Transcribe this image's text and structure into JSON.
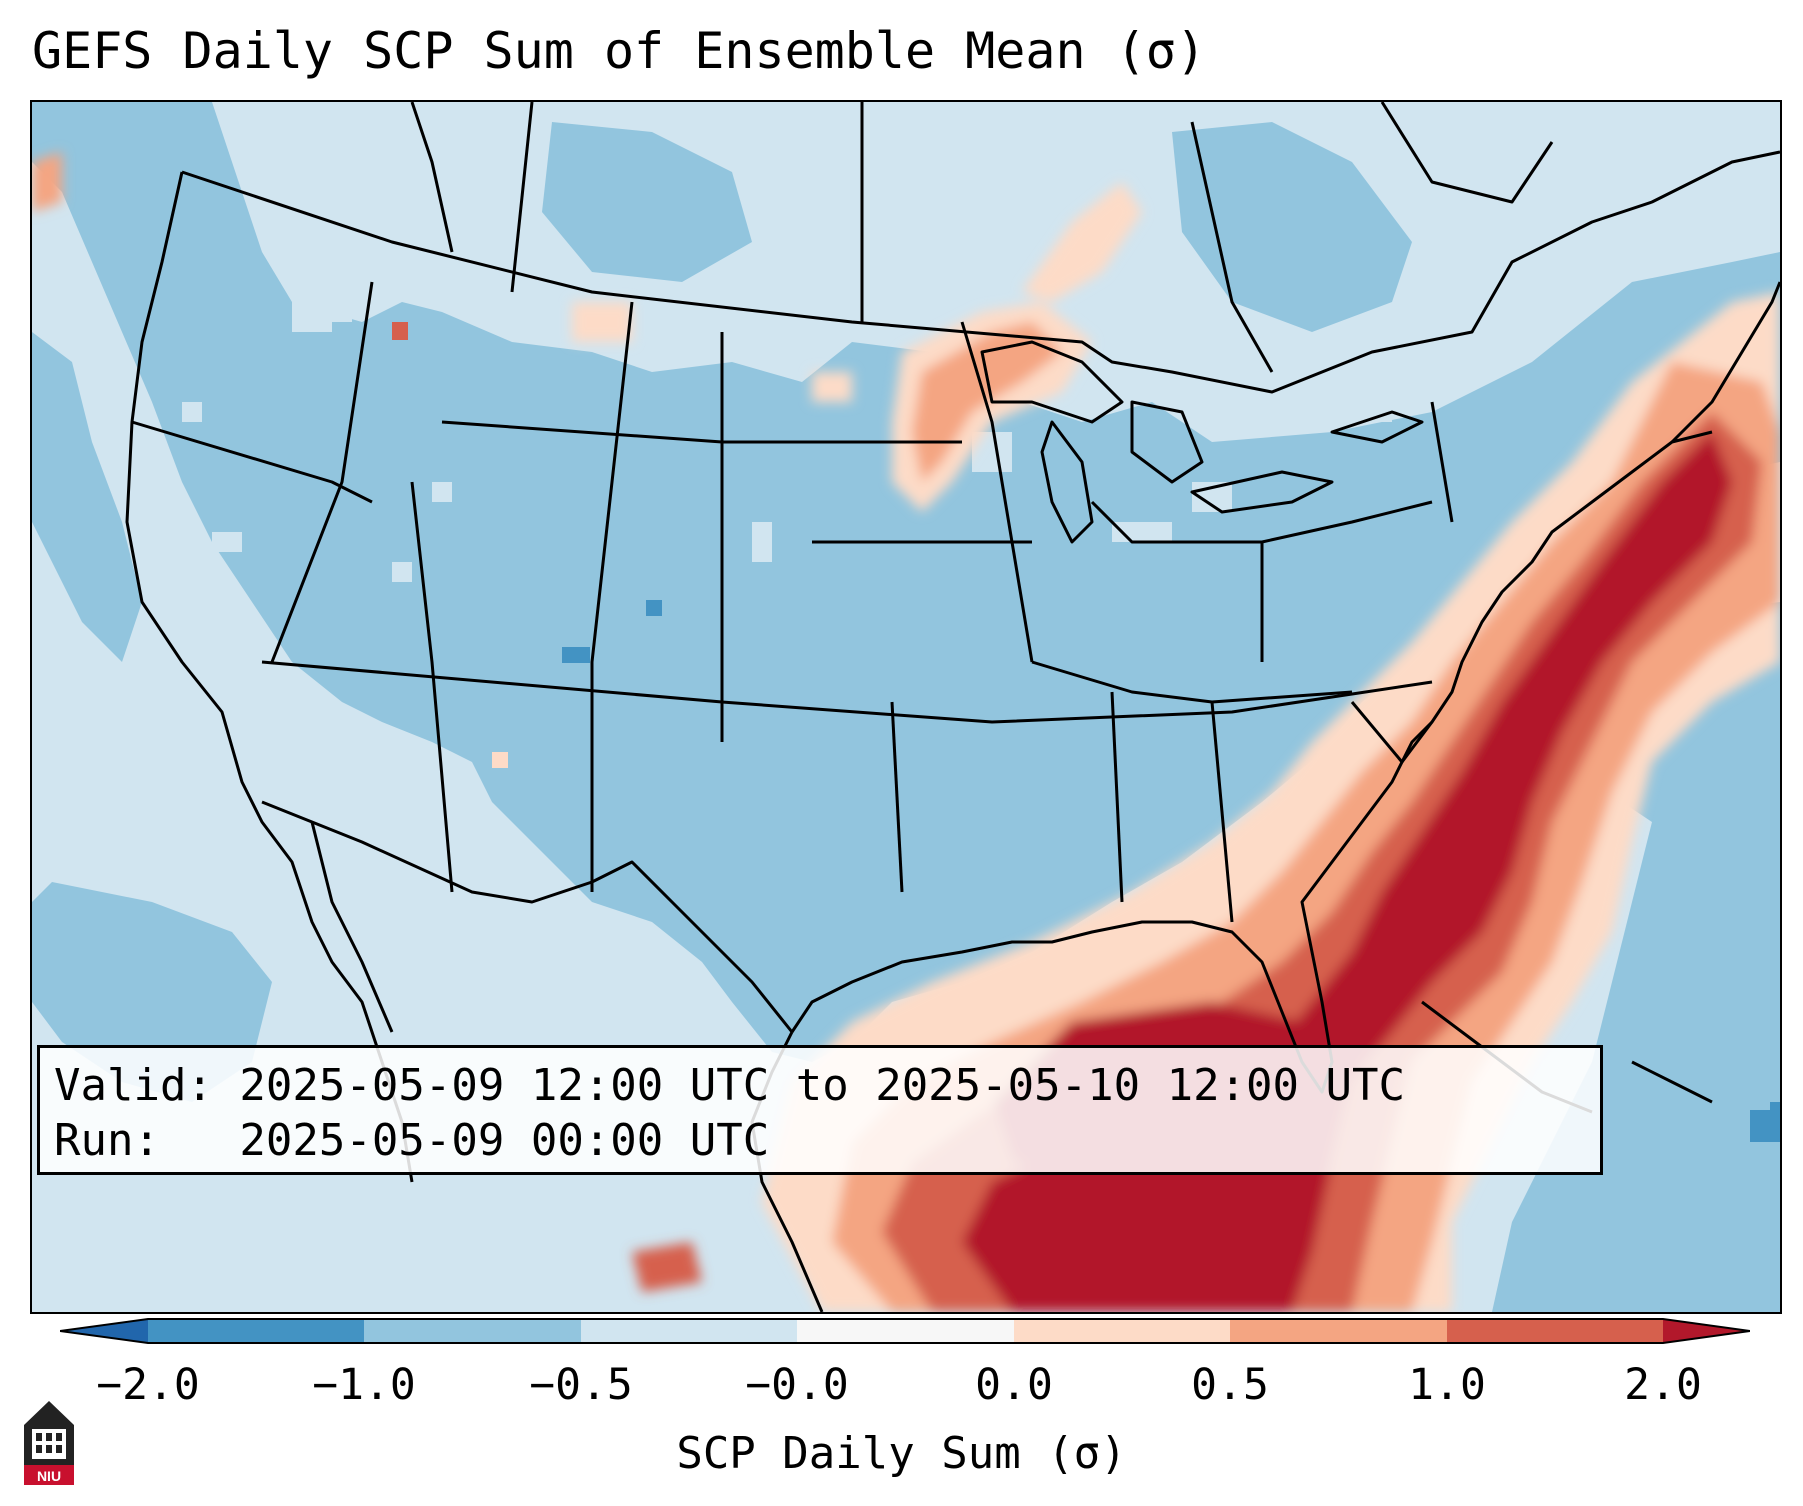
{
  "title": "GEFS Daily SCP Sum of Ensemble Mean (σ)",
  "info": {
    "valid": "Valid: 2025-05-09 12:00 UTC to 2025-05-10 12:00 UTC",
    "run": "Run:   2025-05-09 00:00 UTC"
  },
  "colorbar": {
    "label": "SCP Daily Sum (σ)",
    "ticks": [
      "−2.0",
      "−1.0",
      "−0.5",
      "−0.0",
      "0.0",
      "0.5",
      "1.0",
      "2.0"
    ],
    "colors": {
      "below_min": "#2166ac",
      "lt_m2": "#2166ac",
      "m2_m1": "#4393c3",
      "m1_m05": "#92c5de",
      "m05_0": "#d1e5f0",
      "zero": "#f7f7f7",
      "p0_p05": "#fddbc7",
      "p05_p1": "#f4a582",
      "p1_p2": "#d6604d",
      "gt_p2": "#b2182b"
    }
  },
  "logo": {
    "text": "NIU",
    "color": "#c8102e"
  }
}
